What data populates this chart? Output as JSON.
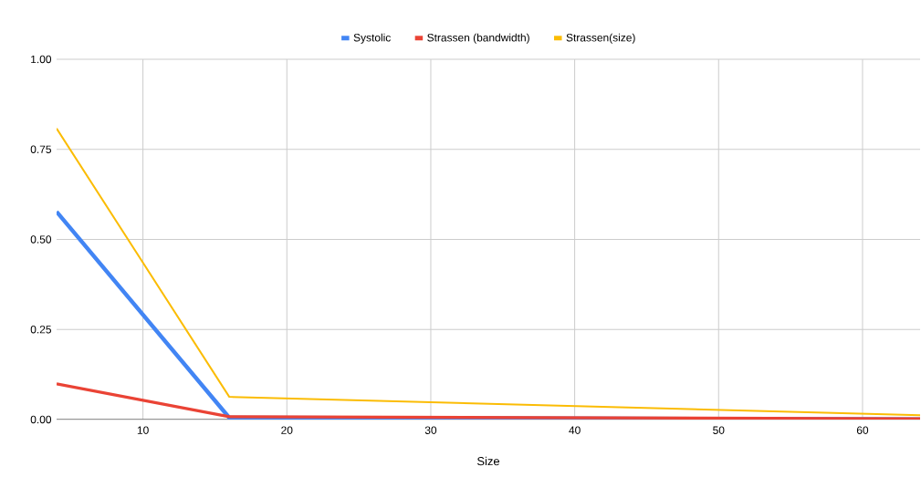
{
  "chart_data": {
    "type": "line",
    "xlabel": "Size",
    "x": [
      4,
      16,
      64
    ],
    "series": [
      {
        "name": "Systolic",
        "color": "#4285f4",
        "values": [
          0.577,
          0.005,
          0.001
        ]
      },
      {
        "name": "Strassen (bandwidth)",
        "color": "#ea4335",
        "values": [
          0.099,
          0.008,
          0.002
        ]
      },
      {
        "name": "Strassen(size)",
        "color": "#fbbc04",
        "values": [
          0.808,
          0.063,
          0.012
        ]
      }
    ],
    "xlim": [
      4,
      64
    ],
    "ylim": [
      0,
      1
    ],
    "xticks": [
      10,
      20,
      30,
      40,
      50,
      60
    ],
    "yticks": [
      {
        "value": 0,
        "label": "0.00"
      },
      {
        "value": 0.25,
        "label": "0.25"
      },
      {
        "value": 0.5,
        "label": "0.50"
      },
      {
        "value": 0.75,
        "label": "0.75"
      },
      {
        "value": 1,
        "label": "1.00"
      }
    ],
    "grid": true,
    "legend": "top",
    "marker": "none",
    "line_style": "solid"
  }
}
